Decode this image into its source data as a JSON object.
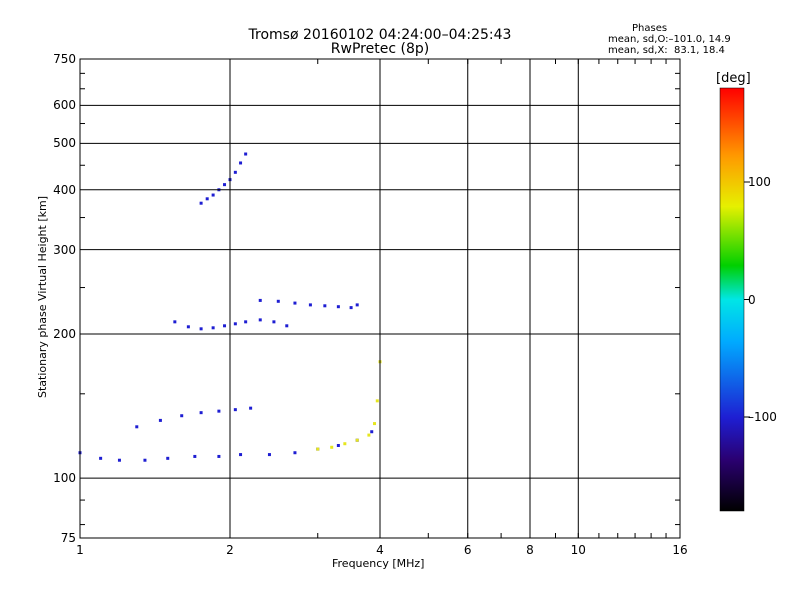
{
  "header": {
    "title": "Tromsø 20160102 04:24:00–04:25:43",
    "subtitle": "RwPretec (8p)",
    "phase_title": "Phases",
    "phase_o": "mean, sd,O:–101.0, 14.9",
    "phase_x": "mean, sd,X:  83.1, 18.4"
  },
  "colorbar": {
    "label": "[deg]",
    "tick_labels": [
      "100",
      "0",
      "–100"
    ],
    "tick_values": [
      100,
      0,
      -100
    ],
    "range": [
      -180,
      180
    ]
  },
  "chart_data": {
    "type": "scatter",
    "xlabel": "Frequency [MHz]",
    "ylabel": "Stationary phase Virtual Height [km]",
    "x_scale": "log",
    "y_scale": "log",
    "xlim": [
      1,
      16
    ],
    "ylim": [
      75,
      750
    ],
    "x_ticks": [
      1,
      2,
      4,
      6,
      8,
      10,
      16
    ],
    "x_tick_labels": [
      "1",
      "2",
      "4",
      "6",
      "8",
      "10",
      "16"
    ],
    "y_ticks": [
      75,
      100,
      200,
      300,
      400,
      500,
      600,
      750
    ],
    "y_tick_labels": [
      "75",
      "100",
      "200",
      "300",
      "400",
      "500",
      "600",
      "750"
    ],
    "grid": true,
    "series": [
      {
        "trace": "O-mode lower trace",
        "color": "#1e1ed2",
        "x": [
          1.0,
          1.1,
          1.2,
          1.35,
          1.5,
          1.7,
          1.9,
          2.1,
          2.4,
          2.7,
          3.0,
          3.3,
          3.6,
          3.85
        ],
        "y": [
          113,
          110,
          109,
          109,
          110,
          111,
          111,
          112,
          112,
          113,
          115,
          117,
          120,
          125
        ]
      },
      {
        "trace": "O-mode band 140 km",
        "color": "#1e1ed2",
        "x": [
          1.3,
          1.45,
          1.6,
          1.75,
          1.9,
          2.05,
          2.2
        ],
        "y": [
          128,
          132,
          135,
          137,
          138,
          139,
          140
        ]
      },
      {
        "trace": "O-mode band 210 km",
        "color": "#1e1ed2",
        "x": [
          1.55,
          1.65,
          1.75,
          1.85,
          1.95,
          2.05,
          2.15,
          2.3,
          2.45,
          2.6
        ],
        "y": [
          212,
          207,
          205,
          206,
          208,
          210,
          212,
          214,
          212,
          208
        ]
      },
      {
        "trace": "O-mode band 230 km",
        "color": "#1e1ed2",
        "x": [
          2.3,
          2.5,
          2.7,
          2.9,
          3.1,
          3.3,
          3.5,
          3.6
        ],
        "y": [
          235,
          234,
          232,
          230,
          229,
          228,
          227,
          230
        ]
      },
      {
        "trace": "O-mode F-layer cluster",
        "color": "#1e1ed2",
        "x": [
          1.75,
          1.8,
          1.85,
          1.9,
          1.95,
          2.0,
          2.05,
          2.1,
          2.15
        ],
        "y": [
          375,
          383,
          390,
          400,
          410,
          420,
          435,
          455,
          475
        ]
      },
      {
        "trace": "X-mode trace",
        "color": "#e6e61e",
        "x": [
          3.0,
          3.2,
          3.4,
          3.6,
          3.8,
          3.9,
          3.95,
          4.0
        ],
        "y": [
          115,
          116,
          118,
          120,
          123,
          130,
          145,
          175
        ]
      }
    ]
  }
}
